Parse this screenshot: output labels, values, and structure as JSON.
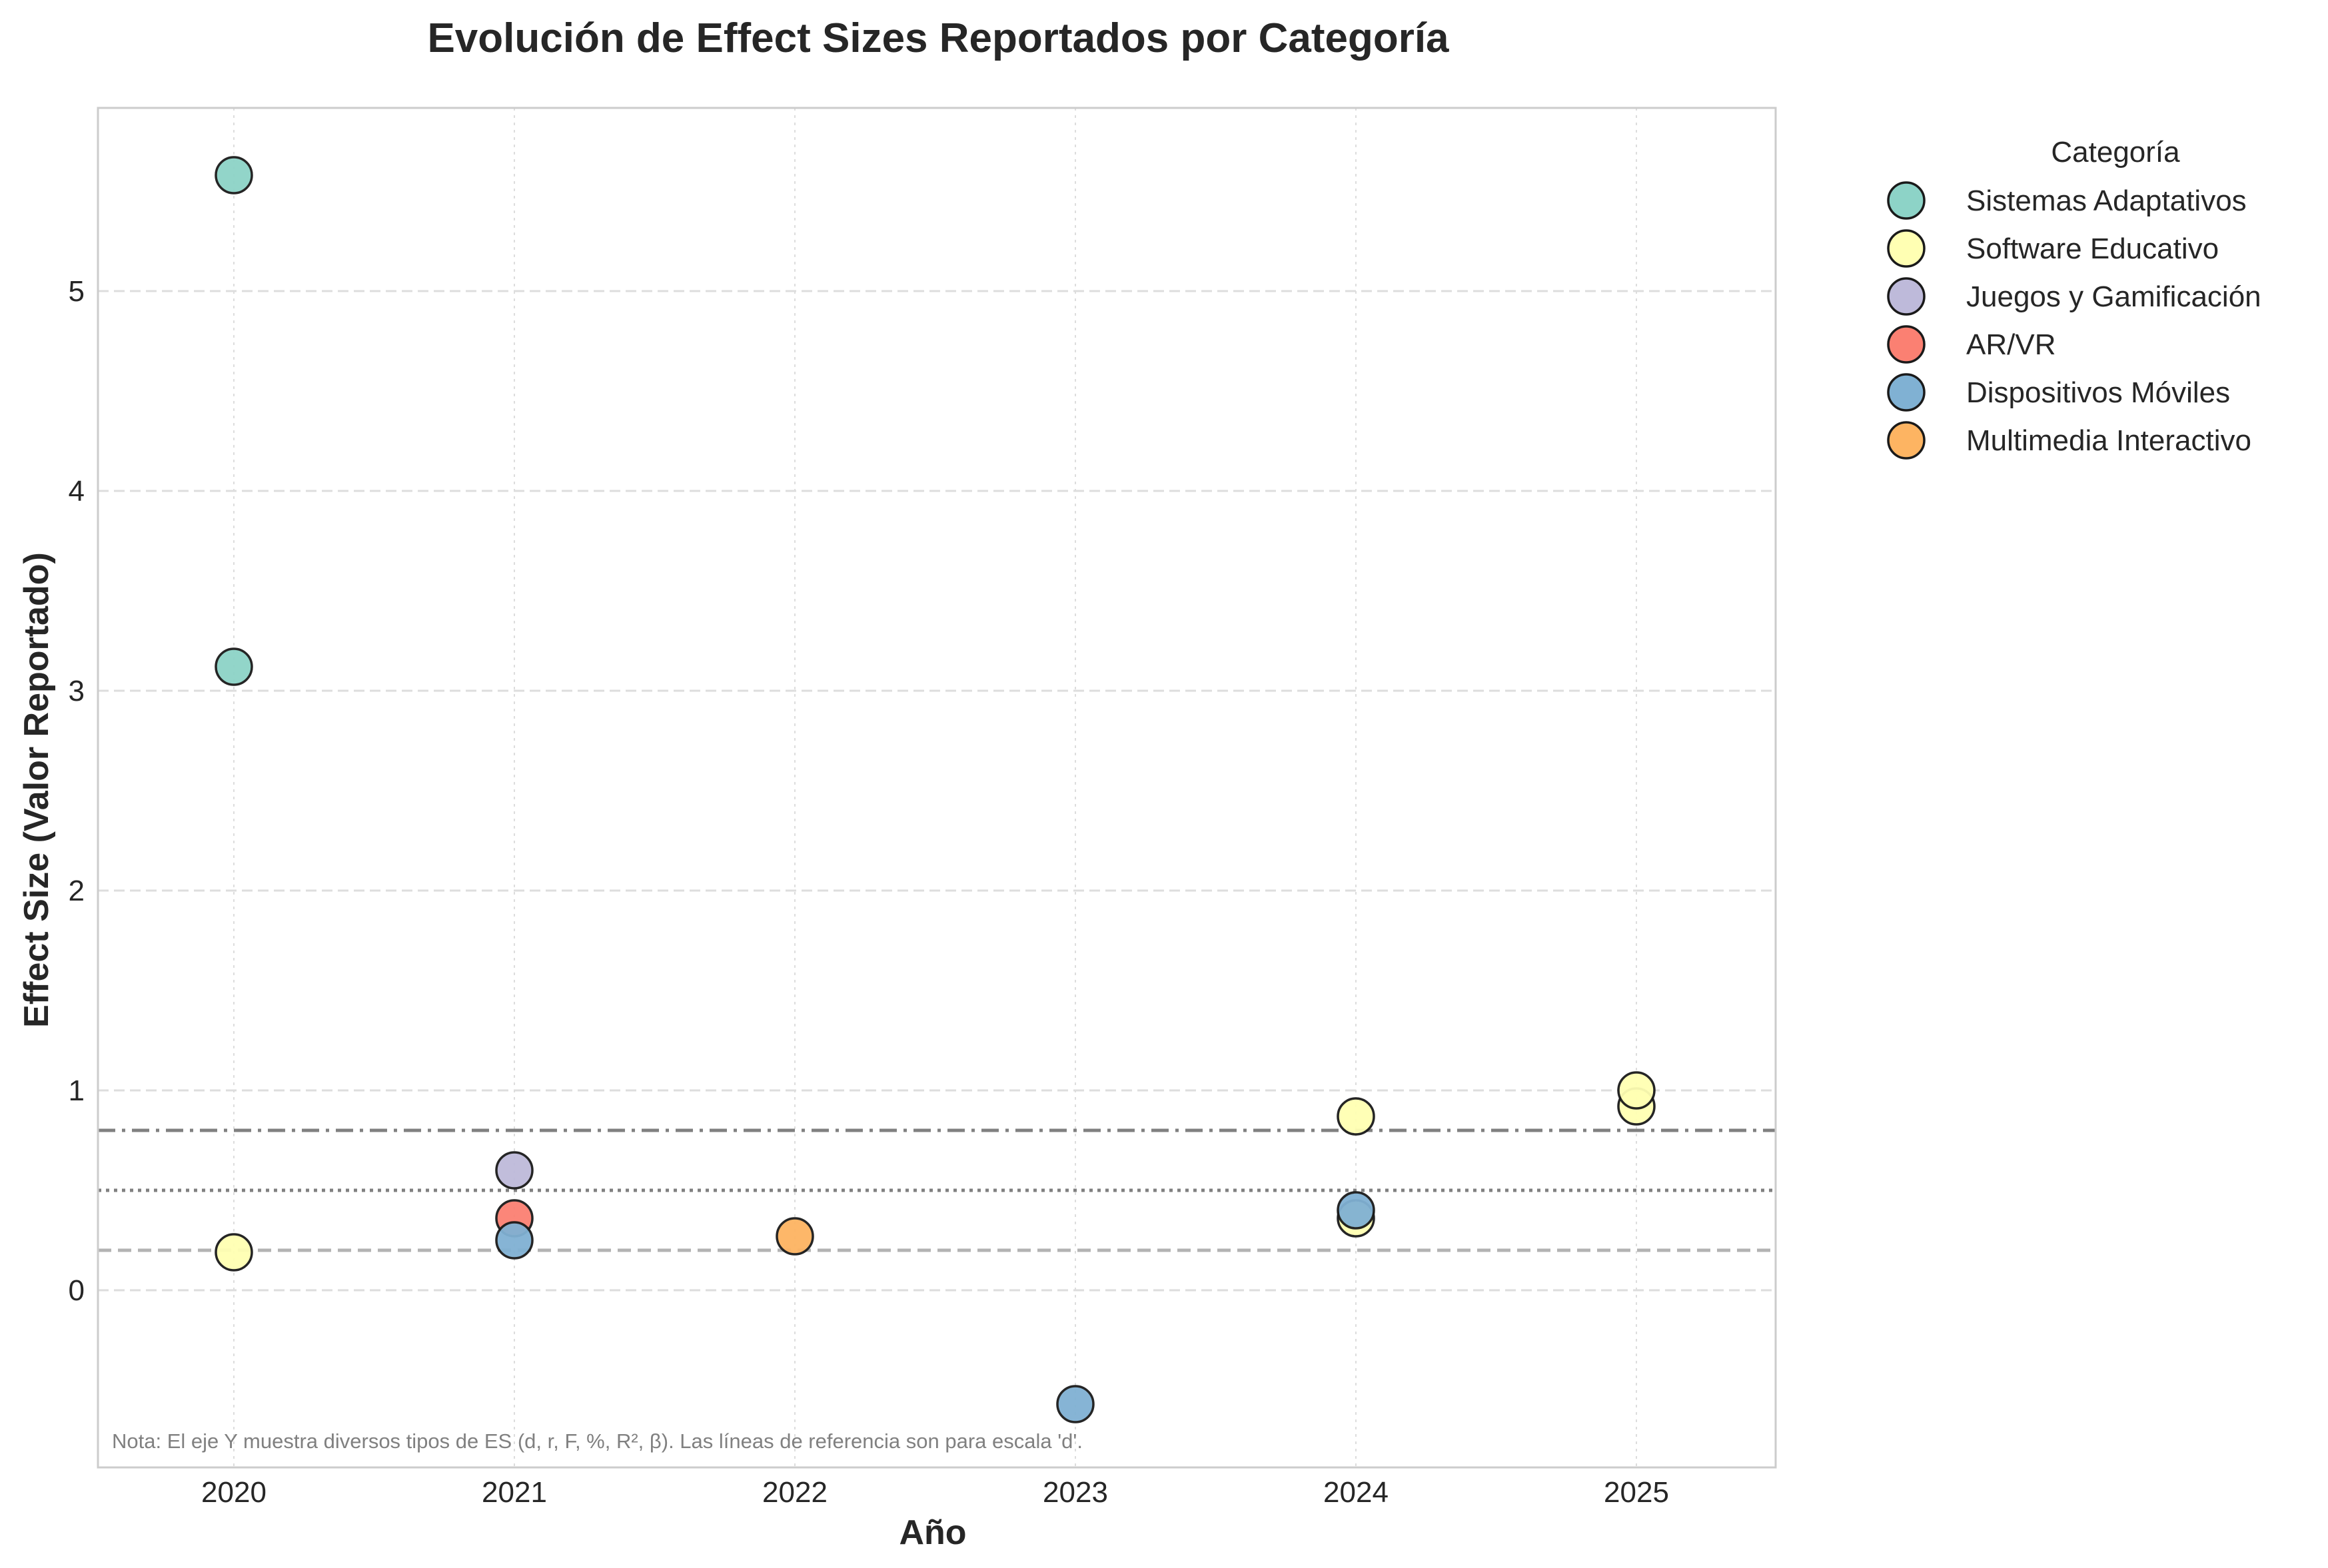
{
  "chart_data": {
    "type": "scatter",
    "title": "Evolución de Effect Sizes Reportados por Categoría",
    "xlabel": "Año",
    "ylabel": "Effect Size (Valor Reportado)",
    "x_categories": [
      "2020",
      "2021",
      "2022",
      "2023",
      "2024",
      "2025"
    ],
    "ylim": [
      -0.88,
      5.9
    ],
    "yticks": [
      0,
      1,
      2,
      3,
      4,
      5
    ],
    "grid": true,
    "legend": {
      "title": "Categoría",
      "placement": "outside-top-right"
    },
    "series": [
      {
        "name": "Sistemas Adaptativos",
        "color": "#8dd3c7",
        "points": [
          {
            "x": "2020",
            "y": 5.58
          },
          {
            "x": "2020",
            "y": 3.12
          }
        ]
      },
      {
        "name": "Software Educativo",
        "color": "#ffffb3",
        "points": [
          {
            "x": "2020",
            "y": 0.19
          },
          {
            "x": "2024",
            "y": 0.36
          },
          {
            "x": "2024",
            "y": 0.87
          },
          {
            "x": "2025",
            "y": 0.92
          },
          {
            "x": "2025",
            "y": 1.0
          }
        ]
      },
      {
        "name": "Juegos y Gamificación",
        "color": "#bebada",
        "points": [
          {
            "x": "2021",
            "y": 0.6
          }
        ]
      },
      {
        "name": "AR/VR",
        "color": "#fb8072",
        "points": [
          {
            "x": "2021",
            "y": 0.36
          }
        ]
      },
      {
        "name": "Dispositivos Móviles",
        "color": "#80b1d3",
        "points": [
          {
            "x": "2021",
            "y": 0.25
          },
          {
            "x": "2023",
            "y": -0.57
          },
          {
            "x": "2024",
            "y": 0.4
          }
        ]
      },
      {
        "name": "Multimedia Interactivo",
        "color": "#fdb462",
        "points": [
          {
            "x": "2022",
            "y": 0.27
          }
        ]
      }
    ],
    "reference_lines": [
      {
        "y": 0.8,
        "style": "dashdot",
        "color": "#808080"
      },
      {
        "y": 0.5,
        "style": "dotted",
        "color": "#808080"
      },
      {
        "y": 0.2,
        "style": "dashed",
        "color": "#b3b3b3"
      }
    ],
    "annotation": "Nota: El eje Y muestra diversos tipos de ES (d, r, F, %, R², β). Las líneas de referencia son para escala 'd'."
  }
}
